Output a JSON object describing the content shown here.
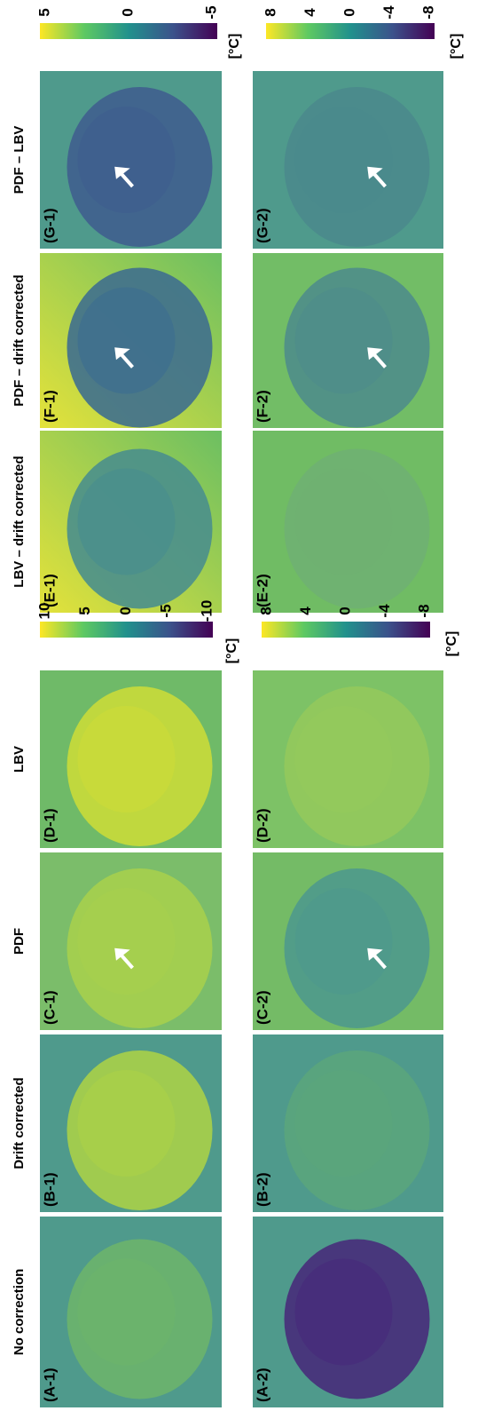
{
  "columns": [
    {
      "title": "No correction"
    },
    {
      "title": "Drift corrected"
    },
    {
      "title": "PDF"
    },
    {
      "title": "LBV"
    },
    {
      "title": "LBV – drift corrected"
    },
    {
      "title": "PDF – drift corrected"
    },
    {
      "title": "PDF – LBV"
    }
  ],
  "panels": [
    {
      "label": "(A-1)"
    },
    {
      "label": "(B-1)"
    },
    {
      "label": "(C-1)"
    },
    {
      "label": "(D-1)"
    },
    {
      "label": "(E-1)"
    },
    {
      "label": "(F-1)"
    },
    {
      "label": "(G-1)"
    },
    {
      "label": "(A-2)"
    },
    {
      "label": "(B-2)"
    },
    {
      "label": "(C-2)"
    },
    {
      "label": "(D-2)"
    },
    {
      "label": "(E-2)"
    },
    {
      "label": "(F-2)"
    },
    {
      "label": "(G-2)"
    }
  ],
  "colorbars": [
    {
      "ticks": [
        "10",
        "5",
        "0",
        "-5",
        "-10"
      ],
      "unit": "[°C]"
    },
    {
      "ticks": [
        "8",
        "4",
        "0",
        "-4",
        "-8"
      ],
      "unit": "[°C]"
    },
    {
      "ticks": [
        "5",
        "0",
        "-5"
      ],
      "unit": "[°C]"
    },
    {
      "ticks": [
        "8",
        "4",
        "0",
        "-4",
        "-8"
      ],
      "unit": "[°C]"
    }
  ]
}
